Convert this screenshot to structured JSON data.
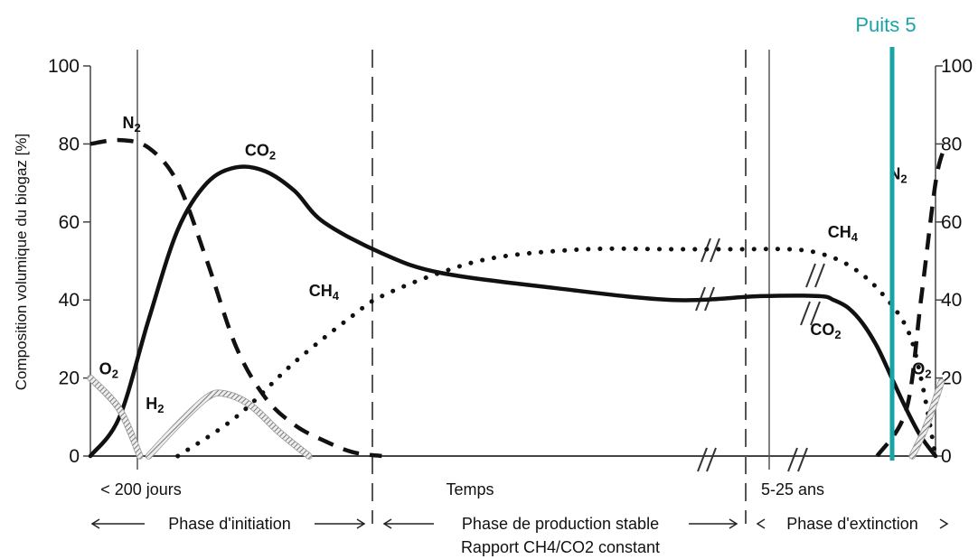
{
  "chart_data": {
    "type": "line",
    "ylabel": "Composition volumique du biogaz [%]",
    "xlabel": "Temps",
    "ylim": [
      0,
      100
    ],
    "yticks": [
      0,
      20,
      40,
      60,
      80,
      100
    ],
    "x_tick_labels": [
      "< 200 jours",
      "Temps",
      "5-25 ans"
    ],
    "phases": [
      {
        "label": "Phase d'initiation",
        "sublabel": ""
      },
      {
        "label": "Phase de production stable",
        "sublabel": "Rapport CH4/CO2 constant"
      },
      {
        "label": "Phase d'extinction",
        "sublabel": ""
      }
    ],
    "marker": {
      "label": "Puits 5",
      "color": "#1aa3a6"
    },
    "series": [
      {
        "name": "N2",
        "style": "dashed",
        "points": [
          [
            0,
            80
          ],
          [
            1,
            81
          ],
          [
            2,
            79
          ],
          [
            3,
            70
          ],
          [
            4,
            50
          ],
          [
            5,
            28
          ],
          [
            6,
            15
          ],
          [
            7,
            8
          ],
          [
            8,
            4
          ],
          [
            9,
            1
          ],
          [
            10,
            0
          ]
        ]
      },
      {
        "name": "CO2",
        "style": "solid",
        "points": [
          [
            0,
            0
          ],
          [
            1,
            10
          ],
          [
            2,
            35
          ],
          [
            3,
            58
          ],
          [
            4,
            70
          ],
          [
            5,
            74
          ],
          [
            6,
            73
          ],
          [
            7,
            68
          ],
          [
            8,
            60
          ],
          [
            10,
            52
          ],
          [
            12,
            47
          ],
          [
            16,
            43
          ],
          [
            20,
            40
          ],
          [
            23,
            41
          ],
          [
            25,
            41
          ],
          [
            25.5,
            40
          ],
          [
            26,
            38
          ],
          [
            26.5,
            34
          ],
          [
            27,
            28
          ],
          [
            27.5,
            20
          ],
          [
            28,
            12
          ],
          [
            28.5,
            5
          ],
          [
            29,
            0
          ]
        ]
      },
      {
        "name": "CH4",
        "style": "dotted",
        "points": [
          [
            3,
            0
          ],
          [
            5,
            10
          ],
          [
            7,
            24
          ],
          [
            9,
            36
          ],
          [
            10,
            41
          ],
          [
            12,
            47
          ],
          [
            14,
            51
          ],
          [
            17,
            53
          ],
          [
            20,
            53
          ],
          [
            22,
            53
          ],
          [
            24,
            53
          ],
          [
            25,
            52
          ],
          [
            26,
            49
          ],
          [
            27,
            43
          ],
          [
            28,
            33
          ],
          [
            28.5,
            20
          ],
          [
            29,
            0
          ]
        ]
      },
      {
        "name": "O2",
        "style": "hatched",
        "points": [
          [
            0,
            20
          ],
          [
            1,
            12
          ],
          [
            1.7,
            0
          ]
        ]
      },
      {
        "name": "H2",
        "style": "hatched",
        "points": [
          [
            2,
            0
          ],
          [
            3,
            8
          ],
          [
            4,
            15
          ],
          [
            4.6,
            16
          ],
          [
            5.5,
            13
          ],
          [
            6.5,
            6
          ],
          [
            7.5,
            0
          ]
        ]
      },
      {
        "name": "N2",
        "style": "dashed",
        "points": [
          [
            27,
            0
          ],
          [
            28,
            12
          ],
          [
            28.5,
            40
          ],
          [
            29,
            70
          ],
          [
            29.3,
            79
          ]
        ]
      },
      {
        "name": "O2",
        "style": "hatched",
        "points": [
          [
            28.2,
            0
          ],
          [
            28.7,
            8
          ],
          [
            29.2,
            19
          ]
        ]
      }
    ],
    "series_labels": [
      {
        "text": "N2",
        "x": 1.1,
        "y": 84
      },
      {
        "text": "CO2",
        "x": 5.3,
        "y": 77
      },
      {
        "text": "CH4",
        "x": 7.5,
        "y": 41
      },
      {
        "text": "O2",
        "x": 0.3,
        "y": 21
      },
      {
        "text": "H2",
        "x": 1.9,
        "y": 12
      },
      {
        "text": "CH4",
        "x": 25.3,
        "y": 56
      },
      {
        "text": "CO2",
        "x": 24.7,
        "y": 31
      },
      {
        "text": "N2",
        "x": 27.4,
        "y": 71
      },
      {
        "text": "O2",
        "x": 28.2,
        "y": 21
      }
    ]
  }
}
